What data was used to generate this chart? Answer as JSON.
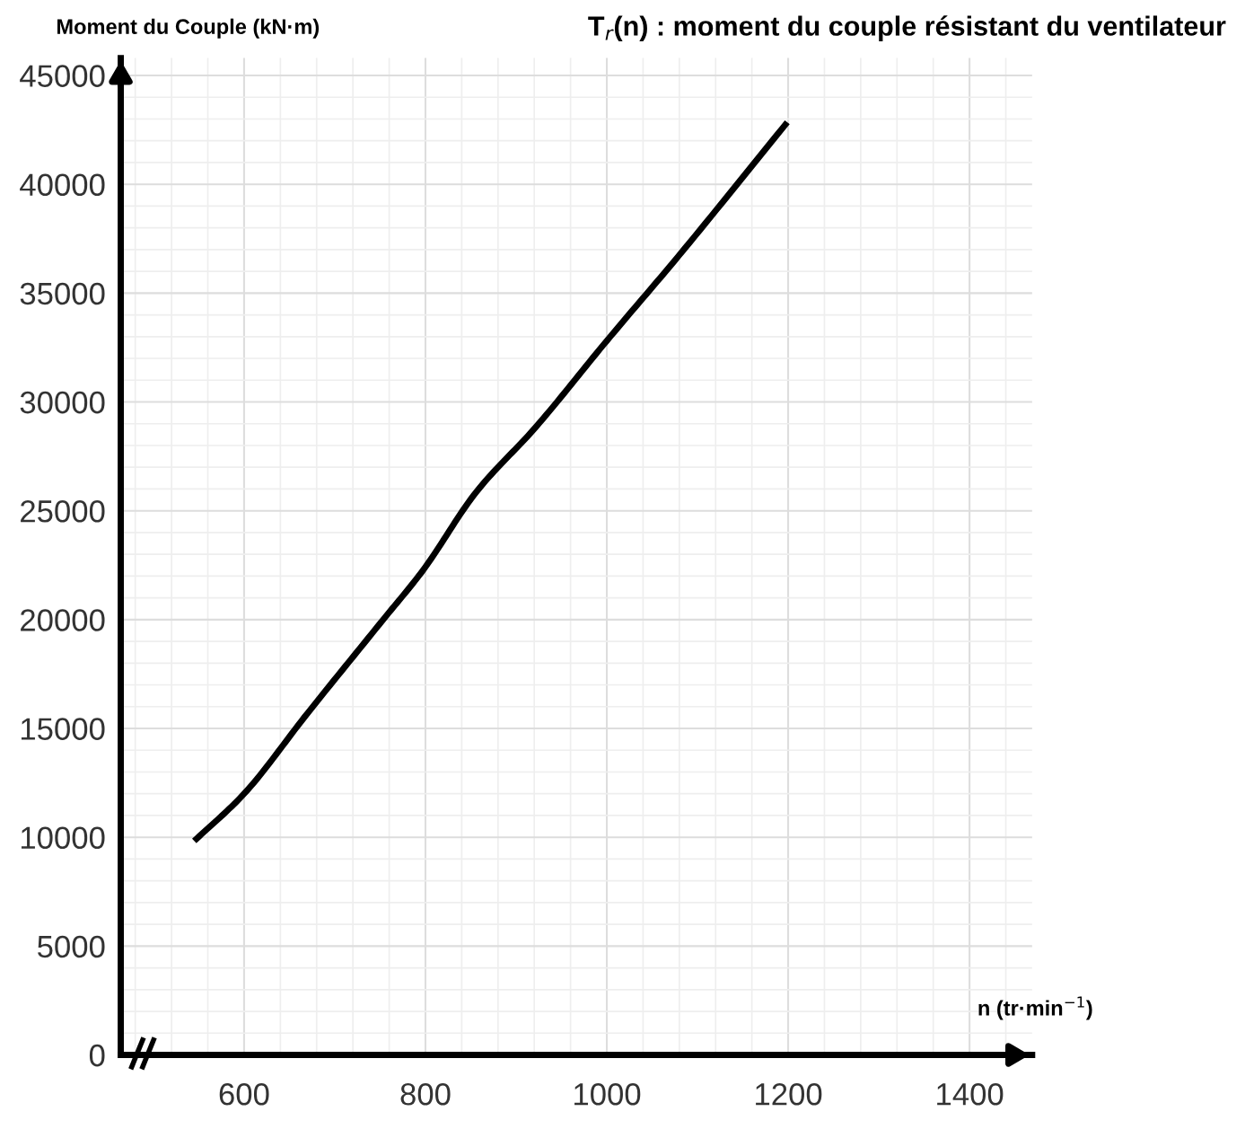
{
  "chart_data": {
    "type": "line",
    "title": "T$_{r}$(n) : moment du couple résistant du ventilateur",
    "ylabel": "Moment du Couple (kN·m)",
    "xlabel": "n (tr·min$^{−1}$)",
    "x": [
      545,
      600,
      670,
      753,
      797,
      856,
      922,
      1000,
      1079,
      1199
    ],
    "series": [
      {
        "color": "#000000",
        "values": [
          9830,
          12000,
          15700,
          19980,
          22250,
          25860,
          28860,
          32810,
          36700,
          42850
        ]
      }
    ],
    "xlim": [
      464,
      1469
    ],
    "ylim": [
      0,
      45800
    ],
    "xticks": [
      600,
      800,
      1000,
      1200,
      1400
    ],
    "yticks": [
      0,
      5000,
      10000,
      15000,
      20000,
      25000,
      30000,
      35000,
      40000,
      45000
    ],
    "grid": true,
    "marker": "none",
    "line_style": "solid"
  }
}
